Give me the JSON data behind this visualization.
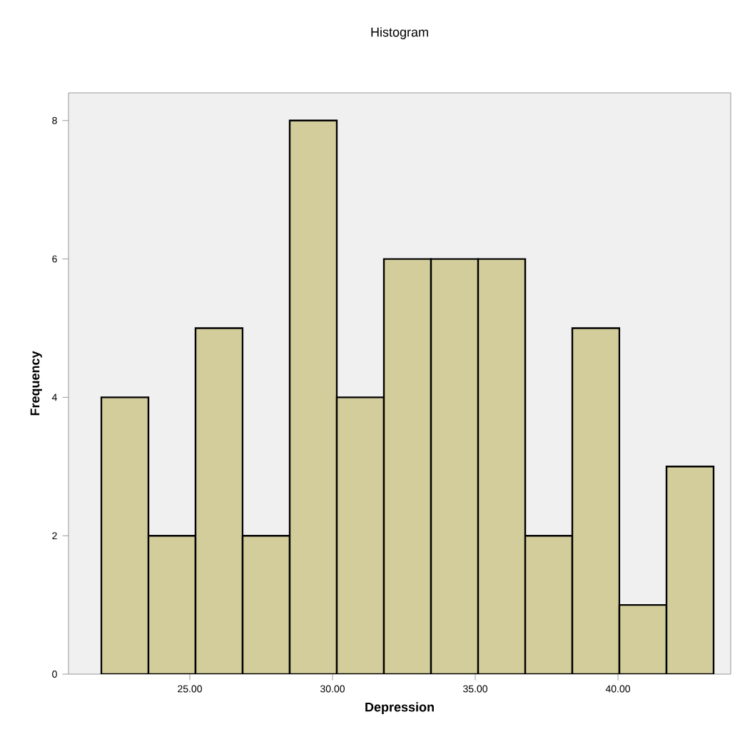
{
  "chart_data": {
    "type": "histogram",
    "title": "Histogram",
    "xlabel": "Depression",
    "ylabel": "Frequency",
    "bins": [
      21.9,
      23.55,
      25.2,
      26.85,
      28.5,
      30.15,
      31.8,
      33.45,
      35.1,
      36.75,
      38.4,
      40.05,
      41.7,
      43.35
    ],
    "values": [
      4,
      2,
      5,
      2,
      8,
      4,
      6,
      6,
      6,
      2,
      5,
      1,
      3
    ],
    "color": "#d3cd9c",
    "xlim": [
      20.75,
      43.95
    ],
    "ylim": [
      0,
      8.4
    ],
    "xticks": [
      {
        "value": 25,
        "label": "25.00"
      },
      {
        "value": 30,
        "label": "30.00"
      },
      {
        "value": 35,
        "label": "35.00"
      },
      {
        "value": 40,
        "label": "40.00"
      }
    ],
    "yticks": [
      0,
      2,
      4,
      6,
      8
    ],
    "grid": false
  }
}
